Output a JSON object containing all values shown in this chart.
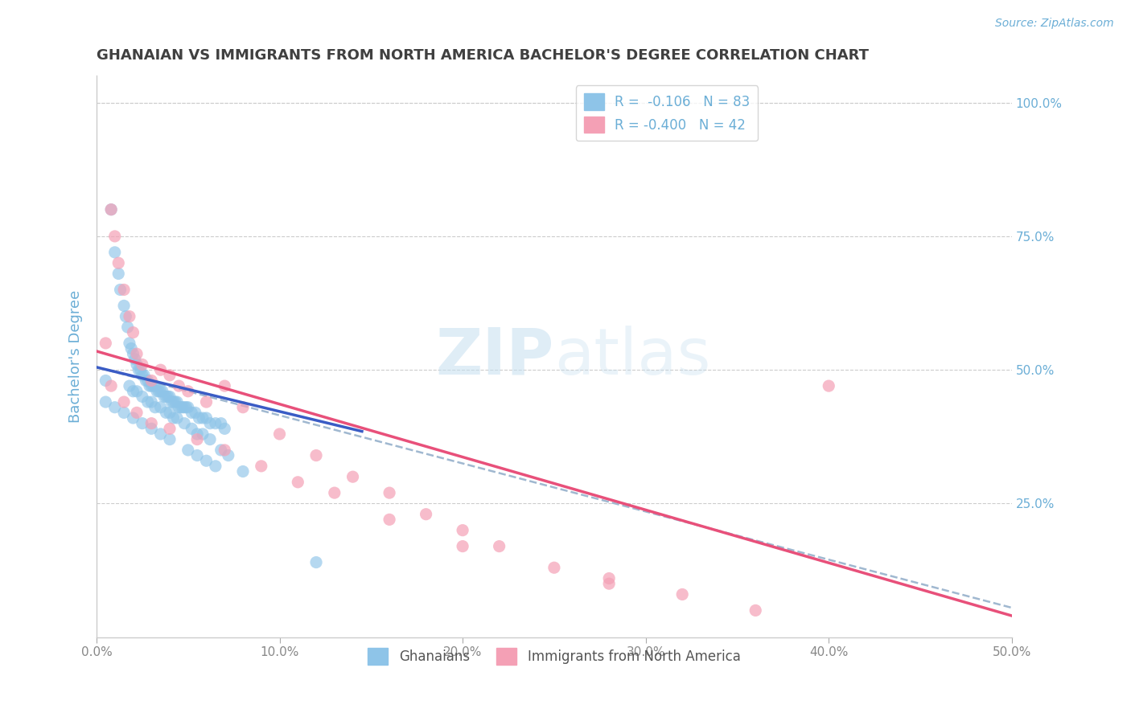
{
  "title": "GHANAIAN VS IMMIGRANTS FROM NORTH AMERICA BACHELOR'S DEGREE CORRELATION CHART",
  "source": "Source: ZipAtlas.com",
  "ylabel": "Bachelor's Degree",
  "xlim": [
    0.0,
    0.5
  ],
  "ylim": [
    0.0,
    1.05
  ],
  "xtick_vals": [
    0.0,
    0.1,
    0.2,
    0.3,
    0.4,
    0.5
  ],
  "xtick_labels": [
    "0.0%",
    "10.0%",
    "20.0%",
    "30.0%",
    "40.0%",
    "50.0%"
  ],
  "yticks_right": [
    0.25,
    0.5,
    0.75,
    1.0
  ],
  "ytick_labels_right": [
    "25.0%",
    "50.0%",
    "75.0%",
    "100.0%"
  ],
  "legend_label1": "R =  -0.106   N = 83",
  "legend_label2": "R = -0.400   N = 42",
  "legend_bottom1": "Ghanaians",
  "legend_bottom2": "Immigrants from North America",
  "watermark_zip": "ZIP",
  "watermark_atlas": "atlas",
  "blue_color": "#8ec4e8",
  "pink_color": "#f4a0b5",
  "blue_line_color": "#3a5cc5",
  "pink_line_color": "#e8507a",
  "dashed_line_color": "#a0b8d0",
  "blue_scatter_x": [
    0.005,
    0.008,
    0.01,
    0.012,
    0.013,
    0.015,
    0.016,
    0.017,
    0.018,
    0.019,
    0.02,
    0.021,
    0.022,
    0.023,
    0.024,
    0.025,
    0.026,
    0.027,
    0.028,
    0.029,
    0.03,
    0.031,
    0.032,
    0.033,
    0.034,
    0.035,
    0.036,
    0.037,
    0.038,
    0.039,
    0.04,
    0.041,
    0.042,
    0.043,
    0.044,
    0.045,
    0.046,
    0.047,
    0.048,
    0.049,
    0.05,
    0.052,
    0.054,
    0.056,
    0.058,
    0.06,
    0.062,
    0.065,
    0.068,
    0.07,
    0.018,
    0.02,
    0.022,
    0.025,
    0.028,
    0.03,
    0.032,
    0.035,
    0.038,
    0.04,
    0.042,
    0.044,
    0.048,
    0.052,
    0.055,
    0.058,
    0.062,
    0.068,
    0.072,
    0.08,
    0.005,
    0.01,
    0.015,
    0.02,
    0.025,
    0.03,
    0.035,
    0.04,
    0.05,
    0.055,
    0.06,
    0.065,
    0.12
  ],
  "blue_scatter_y": [
    0.48,
    0.8,
    0.72,
    0.68,
    0.65,
    0.62,
    0.6,
    0.58,
    0.55,
    0.54,
    0.53,
    0.52,
    0.51,
    0.5,
    0.5,
    0.49,
    0.49,
    0.48,
    0.48,
    0.47,
    0.47,
    0.47,
    0.47,
    0.46,
    0.46,
    0.46,
    0.46,
    0.45,
    0.45,
    0.45,
    0.45,
    0.44,
    0.44,
    0.44,
    0.44,
    0.43,
    0.43,
    0.43,
    0.43,
    0.43,
    0.43,
    0.42,
    0.42,
    0.41,
    0.41,
    0.41,
    0.4,
    0.4,
    0.4,
    0.39,
    0.47,
    0.46,
    0.46,
    0.45,
    0.44,
    0.44,
    0.43,
    0.43,
    0.42,
    0.42,
    0.41,
    0.41,
    0.4,
    0.39,
    0.38,
    0.38,
    0.37,
    0.35,
    0.34,
    0.31,
    0.44,
    0.43,
    0.42,
    0.41,
    0.4,
    0.39,
    0.38,
    0.37,
    0.35,
    0.34,
    0.33,
    0.32,
    0.14
  ],
  "pink_scatter_x": [
    0.005,
    0.008,
    0.01,
    0.012,
    0.015,
    0.018,
    0.02,
    0.022,
    0.025,
    0.03,
    0.035,
    0.04,
    0.045,
    0.05,
    0.06,
    0.07,
    0.08,
    0.1,
    0.12,
    0.14,
    0.16,
    0.18,
    0.2,
    0.22,
    0.25,
    0.28,
    0.32,
    0.36,
    0.008,
    0.015,
    0.022,
    0.03,
    0.04,
    0.055,
    0.07,
    0.09,
    0.11,
    0.13,
    0.16,
    0.2,
    0.28,
    0.4
  ],
  "pink_scatter_y": [
    0.55,
    0.8,
    0.75,
    0.7,
    0.65,
    0.6,
    0.57,
    0.53,
    0.51,
    0.48,
    0.5,
    0.49,
    0.47,
    0.46,
    0.44,
    0.47,
    0.43,
    0.38,
    0.34,
    0.3,
    0.27,
    0.23,
    0.2,
    0.17,
    0.13,
    0.1,
    0.08,
    0.05,
    0.47,
    0.44,
    0.42,
    0.4,
    0.39,
    0.37,
    0.35,
    0.32,
    0.29,
    0.27,
    0.22,
    0.17,
    0.11,
    0.47
  ],
  "blue_trend_x": [
    0.0,
    0.145
  ],
  "blue_trend_y": [
    0.505,
    0.385
  ],
  "pink_trend_x": [
    0.0,
    0.5
  ],
  "pink_trend_y": [
    0.535,
    0.04
  ],
  "dashed_trend_x": [
    0.0,
    0.5
  ],
  "dashed_trend_y": [
    0.505,
    0.055
  ],
  "background_color": "#ffffff",
  "grid_color": "#cccccc",
  "title_color": "#404040",
  "source_color": "#6baed6",
  "axis_label_color": "#6baed6",
  "tick_color": "#888888"
}
